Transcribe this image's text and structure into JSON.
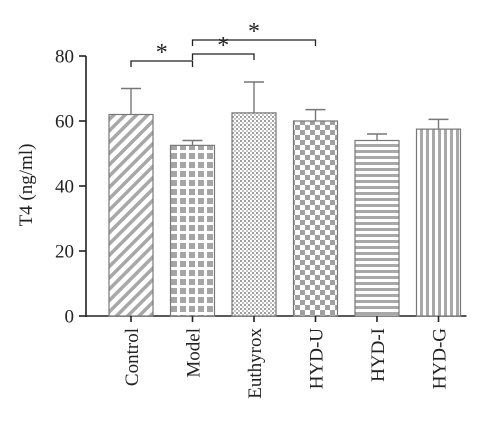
{
  "chart_data": {
    "type": "bar",
    "title": "",
    "xlabel": "",
    "ylabel": "T4 (ng/ml)",
    "ylim": [
      0,
      80
    ],
    "yticks": [
      "0",
      "20",
      "40",
      "60",
      "80"
    ],
    "grid": false,
    "categories": [
      "Control",
      "Model",
      "Euthyrox",
      "HYD-U",
      "HYD-I",
      "HYD-G"
    ],
    "values": [
      62,
      52.5,
      62.5,
      60,
      54,
      57.5
    ],
    "errors": [
      8,
      1.5,
      9.5,
      3.5,
      2,
      3
    ],
    "patterns": [
      "diagonal-hatch",
      "large-checker",
      "fine-dots",
      "checkerboard",
      "horizontal-lines",
      "vertical-lines"
    ],
    "significance": [
      {
        "from": "Control",
        "to": "Model",
        "label": "*"
      },
      {
        "from": "Model",
        "to": "Euthyrox",
        "label": "*"
      },
      {
        "from": "Model",
        "to": "HYD-U",
        "label": "*"
      }
    ],
    "colors": {
      "bar_stroke": "#777777",
      "axis": "#222222",
      "pattern": "#9a9a9a",
      "bar_fill": "#ffffff"
    }
  }
}
